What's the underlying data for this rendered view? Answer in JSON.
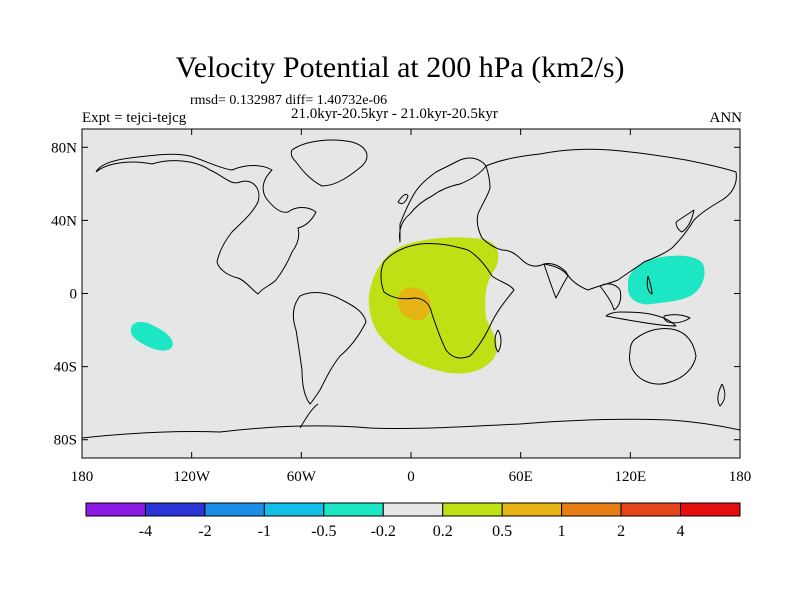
{
  "title": "Velocity Potential at 200 hPa (km2/s)",
  "stats": "rmsd= 0.132987 diff= 1.40732e-06",
  "time_range": "21.0kyr-20.5kyr - 21.0kyr-20.5kyr",
  "experiment": "Expt = tejci-tejcg",
  "season": "ANN",
  "colors": {
    "ocean_background": "#e6e6e6",
    "coast": "#000000",
    "levels": [
      "#8b1ce6",
      "#2a35d8",
      "#1c8ee6",
      "#13bfe6",
      "#1de6c4",
      "#e6e6e6",
      "#bfe014",
      "#e6b414",
      "#e67e14",
      "#e6461c",
      "#e60f0f"
    ]
  },
  "map": {
    "lon_ticks": [
      {
        "value": -180,
        "label": "180"
      },
      {
        "value": -120,
        "label": "120W"
      },
      {
        "value": -60,
        "label": "60W"
      },
      {
        "value": 0,
        "label": "0"
      },
      {
        "value": 60,
        "label": "60E"
      },
      {
        "value": 120,
        "label": "120E"
      },
      {
        "value": 180,
        "label": "180"
      }
    ],
    "lat_ticks": [
      {
        "value": 80,
        "label": "80N"
      },
      {
        "value": 40,
        "label": "40N"
      },
      {
        "value": 0,
        "label": "0"
      },
      {
        "value": -40,
        "label": "40S"
      },
      {
        "value": -80,
        "label": "80S"
      }
    ],
    "features": [
      {
        "name": "positive-anomaly-africa",
        "level": 6,
        "range": "0.2 to 0.5",
        "center_lon": 20,
        "center_lat": 0
      },
      {
        "name": "positive-anomaly-congo",
        "level": 7,
        "range": "0.5 to 1",
        "center_lon": 3,
        "center_lat": -7
      },
      {
        "name": "negative-anomaly-west-pacific",
        "level": 4,
        "range": "-0.5 to -0.2",
        "center_lon": 140,
        "center_lat": 10
      },
      {
        "name": "negative-anomaly-south-pacific",
        "level": 4,
        "range": "-0.5 to -0.2",
        "center_lon": -150,
        "center_lat": -25
      }
    ]
  },
  "colorbar": {
    "labels": [
      "-4",
      "-2",
      "-1",
      "-0.5",
      "-0.2",
      "0.2",
      "0.5",
      "1",
      "2",
      "4"
    ]
  }
}
